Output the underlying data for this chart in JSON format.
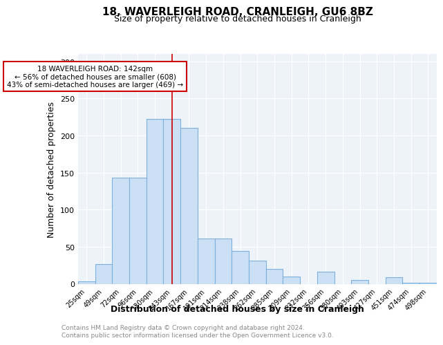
{
  "title": "18, WAVERLEIGH ROAD, CRANLEIGH, GU6 8BZ",
  "subtitle": "Size of property relative to detached houses in Cranleigh",
  "xlabel": "Distribution of detached houses by size in Cranleigh",
  "ylabel": "Number of detached properties",
  "bar_labels": [
    "25sqm",
    "49sqm",
    "72sqm",
    "96sqm",
    "120sqm",
    "143sqm",
    "167sqm",
    "191sqm",
    "214sqm",
    "238sqm",
    "262sqm",
    "285sqm",
    "309sqm",
    "332sqm",
    "356sqm",
    "380sqm",
    "403sqm",
    "427sqm",
    "451sqm",
    "474sqm",
    "498sqm"
  ],
  "bar_values": [
    3,
    27,
    143,
    143,
    222,
    222,
    210,
    61,
    61,
    44,
    31,
    20,
    10,
    0,
    16,
    0,
    5,
    0,
    9,
    1,
    1
  ],
  "bar_color": "#cce0f5",
  "bar_edge_color": "#7aafde",
  "vline_x": 5,
  "vline_color": "#cc0000",
  "annotation_text": "18 WAVERLEIGH ROAD: 142sqm\n← 56% of detached houses are smaller (608)\n43% of semi-detached houses are larger (469) →",
  "annotation_box_color": "white",
  "annotation_box_edge": "#cc0000",
  "ylim": [
    0,
    310
  ],
  "yticks": [
    0,
    50,
    100,
    150,
    200,
    250,
    300
  ],
  "footer_line1": "Contains HM Land Registry data © Crown copyright and database right 2024.",
  "footer_line2": "Contains public sector information licensed under the Open Government Licence v3.0.",
  "title_fontsize": 11,
  "subtitle_fontsize": 9,
  "axis_label_fontsize": 9,
  "tick_fontsize": 8,
  "bg_color": "#eef3fa"
}
